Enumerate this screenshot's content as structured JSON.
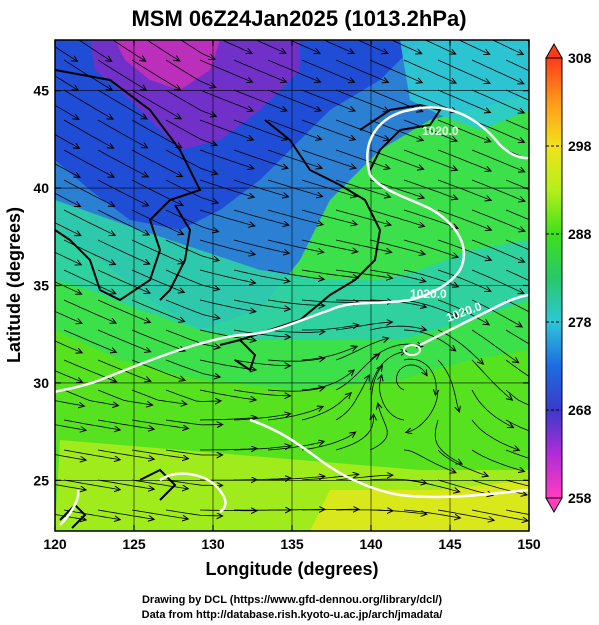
{
  "title": "MSM 06Z24Jan2025 (1013.2hPa)",
  "x_axis": {
    "label": "Longitude (degrees)",
    "range": [
      120,
      150
    ],
    "ticks": [
      "120",
      "125",
      "130",
      "135",
      "140",
      "145",
      "150"
    ]
  },
  "y_axis": {
    "label": "Latitude  (degrees)",
    "range": [
      22.4,
      47.6
    ],
    "ticks": [
      "25",
      "30",
      "35",
      "40",
      "45"
    ]
  },
  "colorbar": {
    "range": [
      258,
      308
    ],
    "ticks": [
      "258",
      "268",
      "278",
      "288",
      "298",
      "308"
    ],
    "colors": [
      "#ff3dbf",
      "#b02cd8",
      "#3a3acb",
      "#1c6de0",
      "#2fc6d8",
      "#27c86a",
      "#3ee01b",
      "#b5ef1b",
      "#f1e21b",
      "#ff9a1a",
      "#ff3a1a"
    ]
  },
  "isobar_labels": [
    "1020.0",
    "1020.0",
    "1020.0"
  ],
  "credits": [
    "Drawing by DCL (https://www.gfd-dennou.org/library/dcl/)",
    "Data from http://database.rish.kyoto-u.ac.jp/arch/jmadata/"
  ]
}
